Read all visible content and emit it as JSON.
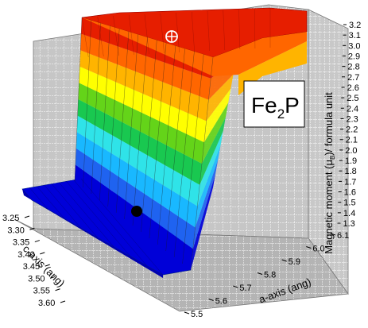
{
  "chart_data": {
    "type": "surface3d",
    "label_compound": "Fe",
    "label_subscript": "2",
    "label_compound_tail": "P",
    "zlabel_prefix": "Magnetic moment (",
    "zlabel_mu": "μ",
    "zlabel_sub": "B",
    "zlabel_suffix": ")/ formula unit",
    "xlabel": "a-axis (ang)",
    "ylabel": "c-axis (ang)",
    "z_ticks": [
      "1.3",
      "1.4",
      "1.5",
      "1.6",
      "1.7",
      "1.8",
      "1.9",
      "2.0",
      "2.1",
      "2.2",
      "2.3",
      "2.4",
      "2.5",
      "2.6",
      "2.7",
      "2.8",
      "2.9",
      "3.0",
      "3.1",
      "3.2"
    ],
    "a_ticks": [
      "5.5",
      "5.6",
      "5.7",
      "5.8",
      "5.9",
      "6.0",
      "6.1"
    ],
    "c_ticks": [
      "3.25",
      "3.30",
      "3.35",
      "3.40",
      "3.45",
      "3.50",
      "3.55",
      "3.60"
    ],
    "zlim": [
      1.3,
      3.2
    ],
    "xlim": [
      5.5,
      6.1
    ],
    "ylim": [
      3.25,
      3.6
    ],
    "markers": [
      {
        "kind": "open-circle-cross",
        "magnetic_moment": 3.1
      },
      {
        "kind": "filled-circle",
        "magnetic_moment": 1.4
      }
    ],
    "colormap": [
      "#0000d8",
      "#1f63f0",
      "#19b8ff",
      "#2fe3e8",
      "#19c850",
      "#64d419",
      "#ffff00",
      "#ffb400",
      "#ff6600",
      "#e61e00"
    ],
    "grid": true
  }
}
